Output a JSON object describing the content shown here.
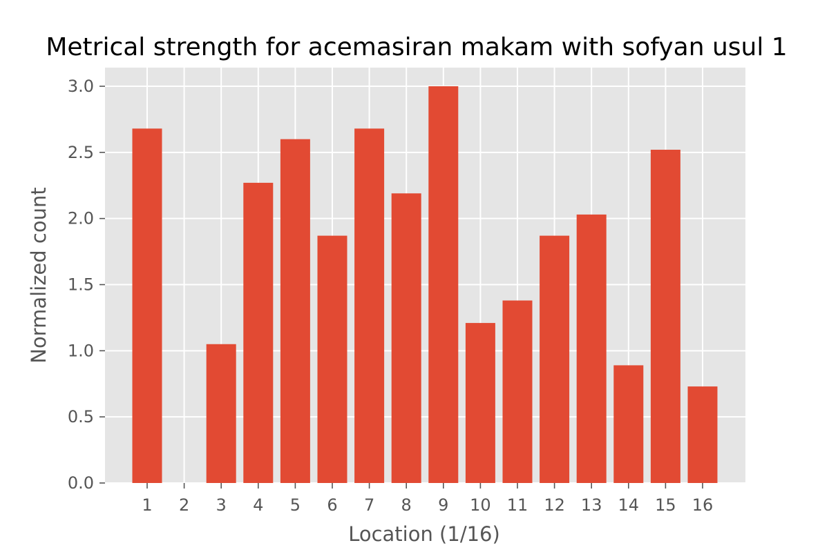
{
  "chart_data": {
    "type": "bar",
    "title": "Metrical strength for acemasiran makam with sofyan usul 1",
    "xlabel": "Location (1/16)",
    "ylabel": "Normalized count",
    "categories": [
      "1",
      "2",
      "3",
      "4",
      "5",
      "6",
      "7",
      "8",
      "9",
      "10",
      "11",
      "12",
      "13",
      "14",
      "15",
      "16"
    ],
    "values": [
      2.68,
      0.0,
      1.05,
      2.27,
      2.6,
      1.87,
      2.68,
      2.19,
      3.0,
      1.21,
      1.38,
      1.87,
      2.03,
      0.89,
      2.52,
      0.73
    ],
    "ylim": [
      0,
      3.15
    ],
    "yticks": [
      "0.0",
      "0.5",
      "1.0",
      "1.5",
      "2.0",
      "2.5",
      "3.0"
    ],
    "grid": true,
    "colors": {
      "bar": "#e24a33",
      "plot_background": "#e5e5e5",
      "grid": "#ffffff",
      "text": "#555555"
    }
  }
}
